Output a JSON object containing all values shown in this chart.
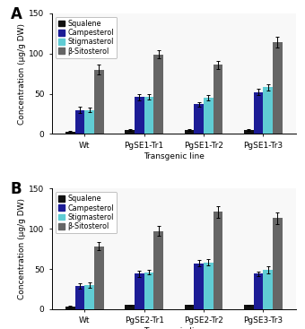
{
  "panel_A": {
    "categories": [
      "Wt",
      "PgSE1-Tr1",
      "PgSE1-Tr2",
      "PgSE1-Tr3"
    ],
    "squalene": [
      3,
      5,
      5,
      5
    ],
    "campesterol": [
      30,
      46,
      37,
      52
    ],
    "stigmasterol": [
      30,
      46,
      45,
      58
    ],
    "beta_sitosterol": [
      80,
      99,
      86,
      114
    ],
    "squalene_err": [
      1,
      1,
      1,
      1
    ],
    "campesterol_err": [
      4,
      4,
      3,
      4
    ],
    "stigmasterol_err": [
      3,
      3,
      3,
      4
    ],
    "beta_sitosterol_err": [
      6,
      5,
      5,
      7
    ],
    "label": "A"
  },
  "panel_B": {
    "categories": [
      "Wt",
      "PgSE2-Tr1",
      "PgSE2-Tr2",
      "PgSE3-Tr3"
    ],
    "squalene": [
      3,
      5,
      5,
      5
    ],
    "campesterol": [
      29,
      44,
      57,
      44
    ],
    "stigmasterol": [
      30,
      46,
      58,
      49
    ],
    "beta_sitosterol": [
      78,
      97,
      121,
      113
    ],
    "squalene_err": [
      1,
      1,
      1,
      1
    ],
    "campesterol_err": [
      3,
      4,
      4,
      3
    ],
    "stigmasterol_err": [
      3,
      3,
      4,
      4
    ],
    "beta_sitosterol_err": [
      5,
      6,
      7,
      7
    ],
    "label": "B"
  },
  "colors": {
    "squalene": "#111111",
    "campesterol": "#1c1c96",
    "stigmasterol": "#60ccd4",
    "beta_sitosterol": "#666666"
  },
  "legend_labels": [
    "Squalene",
    "Campesterol",
    "Stigmasterol",
    "β-Sitosterol"
  ],
  "ylabel": "Concentration (μg/g DW)",
  "xlabel": "Transgenic line",
  "ylim": [
    0,
    150
  ],
  "yticks": [
    0,
    50,
    100,
    150
  ],
  "bar_width": 0.16,
  "figsize": [
    3.4,
    3.67
  ],
  "dpi": 100
}
